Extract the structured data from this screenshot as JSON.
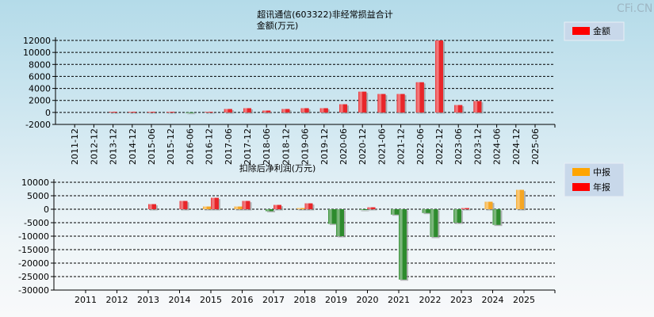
{
  "watermark": "CFi.CN",
  "chart_data": [
    {
      "type": "bar",
      "title": "超讯通信(603322)非经常损益合计",
      "subtitle": "金额(万元)",
      "ylim": [
        -2000,
        12000
      ],
      "yticks": [
        12000,
        10000,
        8000,
        6000,
        4000,
        2000,
        0,
        -2000
      ],
      "grid": true,
      "legend": {
        "placement": "top-right",
        "entries": [
          {
            "name": "金额",
            "color": "#ff0000"
          }
        ]
      },
      "categories": [
        "2011-12",
        "2012-12",
        "2013-12",
        "2014-12",
        "2015-06",
        "2015-12",
        "2016-06",
        "2016-12",
        "2017-06",
        "2017-12",
        "2018-06",
        "2018-12",
        "2019-06",
        "2019-12",
        "2020-06",
        "2020-12",
        "2021-06",
        "2021-12",
        "2022-06",
        "2022-12",
        "2023-06",
        "2023-12",
        "2024-06",
        "2024-12",
        "2025-06"
      ],
      "series": [
        {
          "name": "金额",
          "color": "#e8262a",
          "negative_color": "#2e8b2e",
          "values": [
            0,
            0,
            100,
            100,
            100,
            100,
            -100,
            100,
            570,
            700,
            300,
            570,
            700,
            700,
            1350,
            3450,
            3060,
            3060,
            5020,
            12000,
            1220,
            1880,
            0,
            0,
            0
          ]
        }
      ]
    },
    {
      "type": "bar",
      "title": "扣除后净利润(万元)",
      "ylim": [
        -30000,
        10000
      ],
      "yticks": [
        10000,
        5000,
        0,
        -5000,
        -10000,
        -15000,
        -20000,
        -25000,
        -30000
      ],
      "grid": true,
      "legend": {
        "placement": "top-right",
        "entries": [
          {
            "name": "中报",
            "color": "#ffa500"
          },
          {
            "name": "年报",
            "color": "#ff0000"
          }
        ]
      },
      "categories": [
        "2011",
        "2012",
        "2013",
        "2014",
        "2015",
        "2016",
        "2017",
        "2018",
        "2019",
        "2020",
        "2021",
        "2022",
        "2023",
        "2024",
        "2025"
      ],
      "series": [
        {
          "name": "中报",
          "color": "#f5a623",
          "negative_color": "#2e8b2e",
          "values": [
            null,
            null,
            null,
            null,
            980,
            980,
            -690,
            390,
            -5390,
            -300,
            -1960,
            -1370,
            -5000,
            2750,
            7160
          ]
        },
        {
          "name": "年报",
          "color": "#e8262a",
          "negative_color": "#2e8b2e",
          "values": [
            null,
            null,
            1860,
            3040,
            4210,
            3040,
            1570,
            2160,
            -10000,
            690,
            -26080,
            -10290,
            390,
            -5780,
            null
          ]
        }
      ]
    }
  ]
}
